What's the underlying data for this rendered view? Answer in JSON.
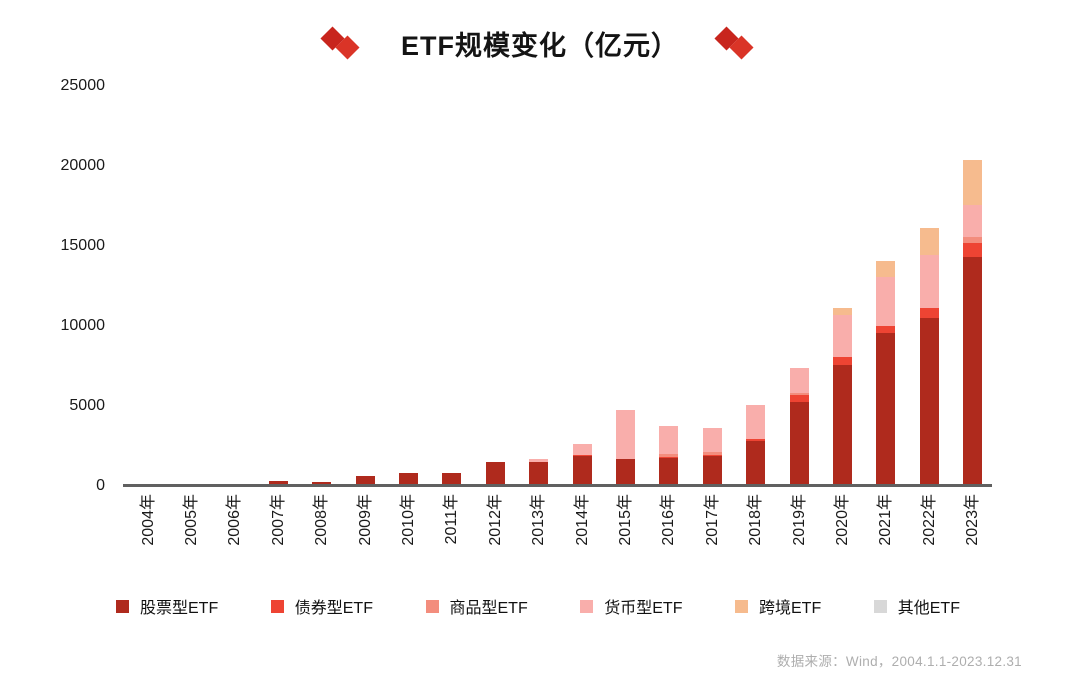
{
  "footer": {
    "source": "数据来源：Wind，2004.1.1-2023.12.31"
  },
  "colors": {
    "title_diamond_dark": "#c8251d",
    "title_diamond_light": "#da3427",
    "axis_line": "#606060",
    "footer_text": "#aeaeae"
  },
  "chart_data": {
    "type": "bar",
    "stacked": true,
    "title": "ETF规模变化（亿元）",
    "xlabel": "",
    "ylabel": "",
    "ylim": [
      0,
      25000
    ],
    "yticks": [
      0,
      5000,
      10000,
      15000,
      20000,
      25000
    ],
    "grid": false,
    "legend_position": "bottom",
    "categories": [
      "2004年",
      "2005年",
      "2006年",
      "2007年",
      "2008年",
      "2009年",
      "2010年",
      "2011年",
      "2012年",
      "2013年",
      "2014年",
      "2015年",
      "2016年",
      "2017年",
      "2018年",
      "2019年",
      "2020年",
      "2021年",
      "2022年",
      "2023年"
    ],
    "series": [
      {
        "name": "股票型ETF",
        "color": "#af2a1d",
        "values": [
          60,
          70,
          130,
          320,
          230,
          650,
          840,
          800,
          1520,
          1520,
          1850,
          1670,
          1770,
          1900,
          2810,
          5270,
          7560,
          9540,
          10480,
          14330
        ]
      },
      {
        "name": "债券型ETF",
        "color": "#ee4433",
        "values": [
          0,
          0,
          0,
          0,
          0,
          0,
          0,
          0,
          0,
          0,
          100,
          30,
          50,
          50,
          100,
          420,
          520,
          460,
          630,
          840
        ]
      },
      {
        "name": "商品型ETF",
        "color": "#f38d7d",
        "values": [
          0,
          0,
          0,
          0,
          0,
          0,
          0,
          0,
          0,
          0,
          0,
          0,
          160,
          150,
          0,
          100,
          0,
          0,
          0,
          410
        ]
      },
      {
        "name": "货币型ETF",
        "color": "#f9aeab",
        "values": [
          0,
          0,
          0,
          0,
          0,
          0,
          0,
          0,
          0,
          150,
          650,
          3050,
          1790,
          1500,
          2150,
          1600,
          2600,
          3080,
          3330,
          1980
        ]
      },
      {
        "name": "跨境ETF",
        "color": "#f6bb8e",
        "values": [
          0,
          0,
          0,
          0,
          0,
          0,
          0,
          0,
          0,
          0,
          0,
          0,
          0,
          0,
          0,
          0,
          420,
          1000,
          1660,
          2810
        ]
      },
      {
        "name": "其他ETF",
        "color": "#d8d8d8",
        "values": [
          0,
          0,
          0,
          0,
          0,
          0,
          0,
          0,
          0,
          0,
          0,
          0,
          0,
          0,
          0,
          0,
          0,
          0,
          0,
          0
        ]
      }
    ]
  }
}
